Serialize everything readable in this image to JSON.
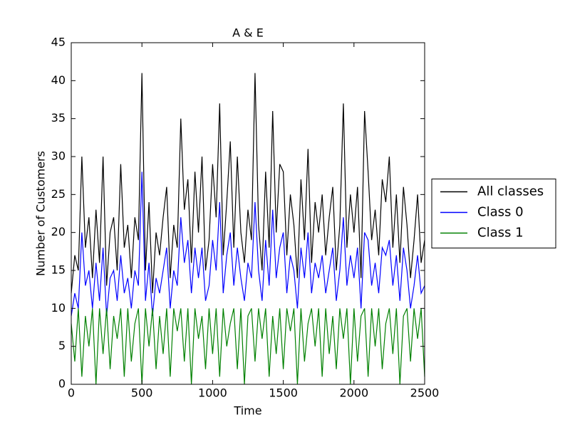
{
  "chart_data": {
    "type": "line",
    "title": "A & E",
    "x_label": "Time",
    "y_label": "Number of Customers",
    "x": [
      0,
      25,
      50,
      75,
      100,
      125,
      150,
      175,
      200,
      225,
      250,
      275,
      300,
      325,
      350,
      375,
      400,
      425,
      450,
      475,
      500,
      525,
      550,
      575,
      600,
      625,
      650,
      675,
      700,
      725,
      750,
      775,
      800,
      825,
      850,
      875,
      900,
      925,
      950,
      975,
      1000,
      1025,
      1050,
      1075,
      1100,
      1125,
      1150,
      1175,
      1200,
      1225,
      1250,
      1275,
      1300,
      1325,
      1350,
      1375,
      1400,
      1425,
      1450,
      1475,
      1500,
      1525,
      1550,
      1575,
      1600,
      1625,
      1650,
      1675,
      1700,
      1725,
      1750,
      1775,
      1800,
      1825,
      1850,
      1875,
      1900,
      1925,
      1950,
      1975,
      2000,
      2025,
      2050,
      2075,
      2100,
      2125,
      2150,
      2175,
      2200,
      2225,
      2250,
      2275,
      2300,
      2325,
      2350,
      2375,
      2400,
      2425,
      2450,
      2475,
      2500
    ],
    "series": [
      {
        "name": "All classes",
        "color": "#000000",
        "values": [
          12,
          17,
          15,
          30,
          18,
          22,
          14,
          23,
          16,
          30,
          13,
          20,
          22,
          15,
          29,
          18,
          21,
          14,
          22,
          19,
          41,
          15,
          24,
          12,
          20,
          17,
          22,
          26,
          14,
          21,
          18,
          35,
          23,
          27,
          16,
          28,
          20,
          30,
          15,
          19,
          29,
          22,
          37,
          17,
          24,
          32,
          18,
          30,
          20,
          16,
          23,
          19,
          41,
          21,
          15,
          28,
          18,
          36,
          20,
          29,
          28,
          17,
          25,
          21,
          14,
          27,
          19,
          31,
          16,
          24,
          20,
          25,
          17,
          22,
          26,
          15,
          21,
          37,
          18,
          25,
          20,
          26,
          14,
          36,
          28,
          19,
          23,
          17,
          27,
          24,
          30,
          18,
          25,
          16,
          26,
          21,
          14,
          19,
          25,
          16,
          19
        ]
      },
      {
        "name": "Class 0",
        "color": "#0000ff",
        "values": [
          9,
          12,
          10,
          20,
          13,
          15,
          10,
          16,
          11,
          18,
          9,
          14,
          15,
          11,
          17,
          12,
          14,
          10,
          15,
          13,
          28,
          11,
          16,
          9,
          14,
          12,
          15,
          18,
          10,
          15,
          13,
          22,
          16,
          19,
          12,
          18,
          14,
          18,
          11,
          13,
          19,
          15,
          24,
          12,
          17,
          20,
          13,
          18,
          14,
          11,
          16,
          14,
          24,
          15,
          11,
          19,
          13,
          23,
          14,
          18,
          20,
          12,
          17,
          15,
          10,
          18,
          14,
          20,
          12,
          16,
          14,
          17,
          12,
          15,
          18,
          11,
          15,
          22,
          13,
          17,
          14,
          18,
          10,
          20,
          19,
          13,
          16,
          12,
          18,
          17,
          19,
          13,
          17,
          11,
          18,
          15,
          10,
          13,
          17,
          12,
          13
        ]
      },
      {
        "name": "Class 1",
        "color": "#008000",
        "values": [
          8,
          3,
          10,
          1,
          9,
          5,
          10,
          0,
          10,
          4,
          10,
          2,
          9,
          6,
          10,
          1,
          10,
          3,
          8,
          10,
          0,
          10,
          5,
          10,
          2,
          9,
          4,
          10,
          1,
          10,
          7,
          10,
          3,
          10,
          0,
          10,
          6,
          9,
          2,
          10,
          4,
          10,
          1,
          10,
          5,
          8,
          10,
          2,
          10,
          0,
          9,
          10,
          3,
          10,
          6,
          10,
          1,
          9,
          4,
          10,
          2,
          10,
          7,
          10,
          0,
          10,
          3,
          8,
          10,
          5,
          10,
          1,
          10,
          4,
          9,
          2,
          10,
          6,
          10,
          0,
          10,
          3,
          9,
          10,
          1,
          10,
          5,
          10,
          2,
          8,
          10,
          4,
          10,
          0,
          9,
          10,
          3,
          10,
          6,
          10,
          1
        ]
      }
    ],
    "xlim": [
      0,
      2500
    ],
    "ylim": [
      0,
      45
    ],
    "xticks": [
      0,
      500,
      1000,
      1500,
      2000,
      2500
    ],
    "yticks": [
      0,
      5,
      10,
      15,
      20,
      25,
      30,
      35,
      40,
      45
    ],
    "legend_loc": "right"
  }
}
